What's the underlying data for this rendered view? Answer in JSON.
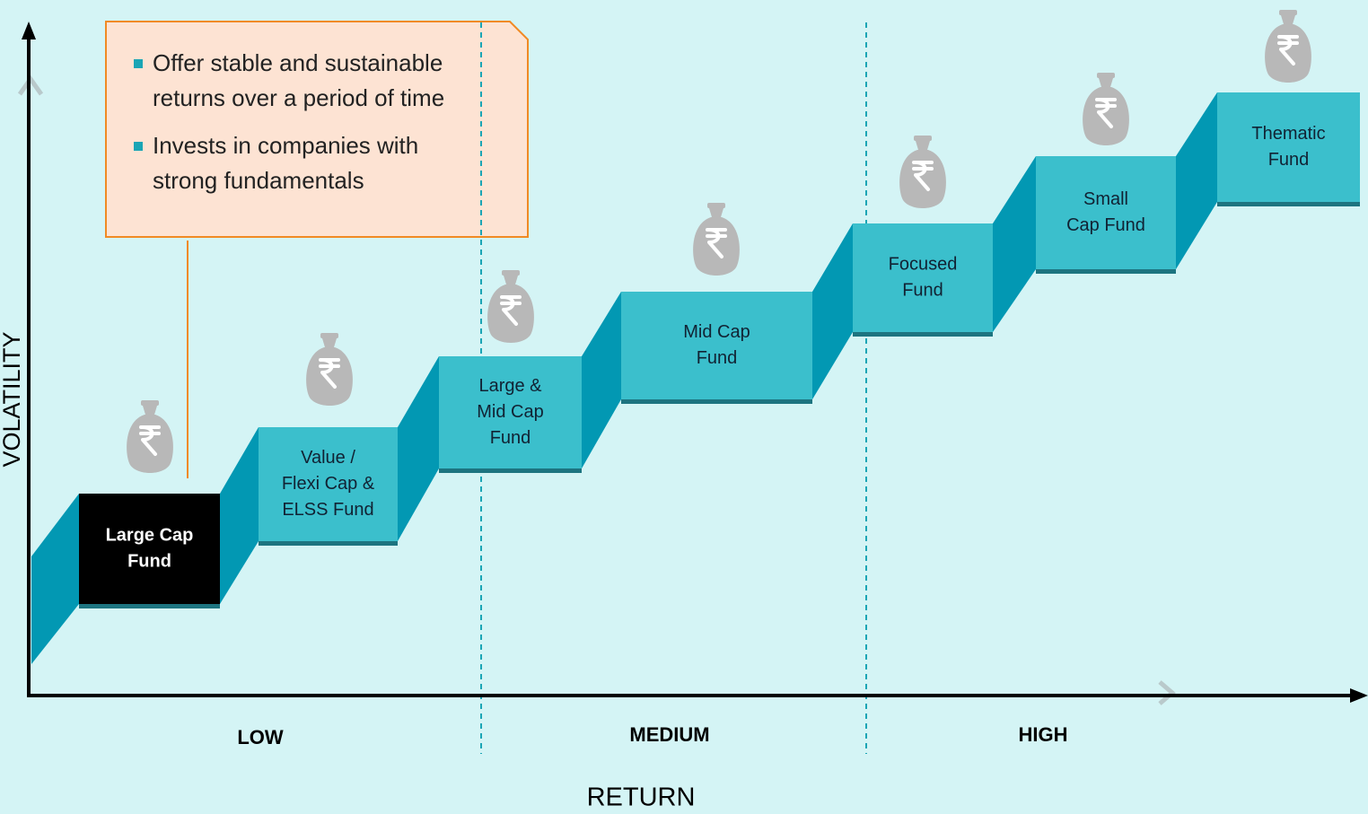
{
  "callout": {
    "bullets": [
      [
        "Offer stable and sustainable",
        "returns over a period of time"
      ],
      [
        "Invests in companies with",
        "strong fundamentals"
      ]
    ]
  },
  "axes": {
    "y_label": "VOLATILITY",
    "x_label": "RETURN"
  },
  "zones": [
    "LOW",
    "MEDIUM",
    "HIGH"
  ],
  "steps": [
    {
      "label": [
        "Large Cap",
        "Fund"
      ]
    },
    {
      "label": [
        "Value /",
        "Flexi Cap &",
        "ELSS Fund"
      ]
    },
    {
      "label": [
        "Large &",
        "Mid Cap",
        "Fund"
      ]
    },
    {
      "label": [
        "Mid Cap",
        "Fund"
      ]
    },
    {
      "label": [
        "Focused",
        "Fund"
      ]
    },
    {
      "label": [
        "Small",
        "Cap Fund"
      ]
    },
    {
      "label": [
        "Thematic",
        "Fund"
      ]
    }
  ]
}
